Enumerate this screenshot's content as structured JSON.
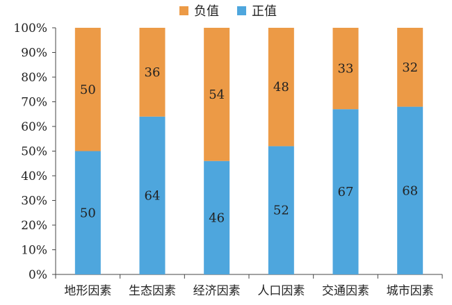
{
  "chart_data": {
    "type": "bar",
    "stacked": true,
    "percent": true,
    "categories": [
      "地形因素",
      "生态因素",
      "经济因素",
      "人口因素",
      "交通因素",
      "城市因素"
    ],
    "series": [
      {
        "name": "正值",
        "color": "#4ea6dd",
        "values": [
          50,
          64,
          46,
          52,
          67,
          68
        ]
      },
      {
        "name": "负值",
        "color": "#ec9a46",
        "values": [
          50,
          36,
          54,
          48,
          33,
          32
        ]
      }
    ],
    "legend_order": [
      "负值",
      "正值"
    ],
    "legend_position": "top",
    "ylim": [
      0,
      100
    ],
    "yticks": [
      "0%",
      "10%",
      "20%",
      "30%",
      "40%",
      "50%",
      "60%",
      "70%",
      "80%",
      "90%",
      "100%"
    ],
    "grid": false,
    "xlabel": "",
    "ylabel": "",
    "title": ""
  }
}
